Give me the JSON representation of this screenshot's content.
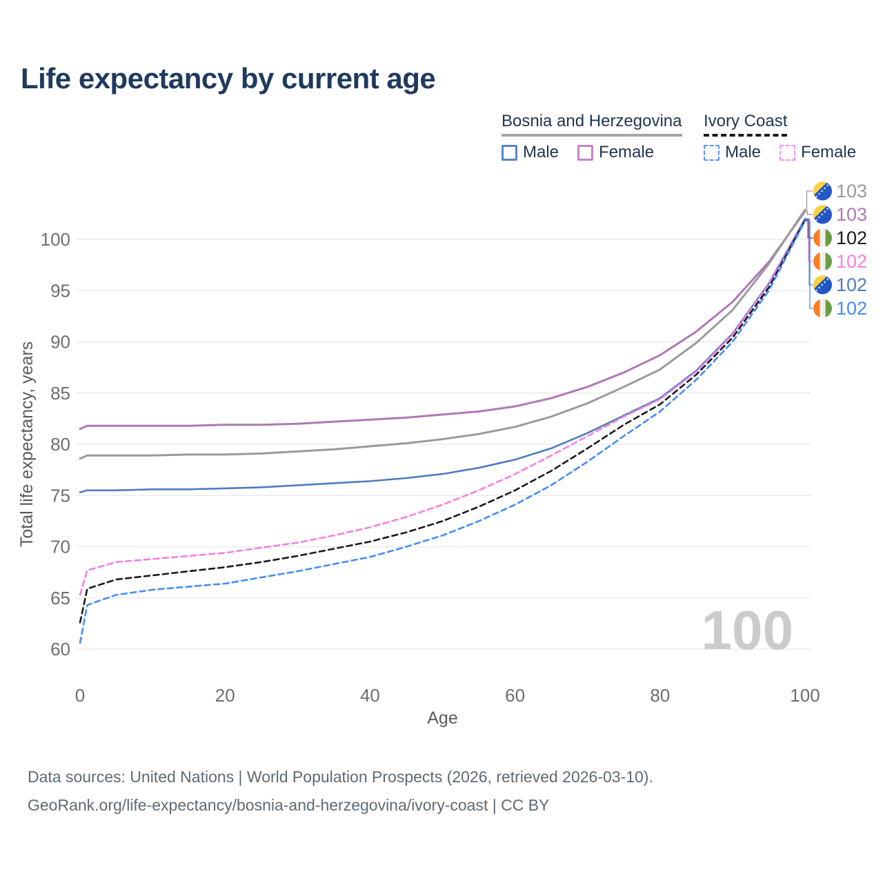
{
  "title": "Life expectancy by current age",
  "legend": {
    "groups": [
      {
        "label": "Bosnia and Herzegovina",
        "line_style": "solid",
        "underline_color": "#a6a6a6",
        "items": [
          {
            "label": "Male",
            "color": "#5b84c4",
            "swatch_style": "solid"
          },
          {
            "label": "Female",
            "color": "#c285c4",
            "swatch_style": "solid"
          }
        ]
      },
      {
        "label": "Ivory Coast",
        "line_style": "dashed",
        "underline_color": "#1a1a1a",
        "items": [
          {
            "label": "Male",
            "color": "#5191f5",
            "swatch_style": "dashed"
          },
          {
            "label": "Female",
            "color": "#fe8ce2",
            "swatch_style": "dashed"
          }
        ]
      }
    ]
  },
  "chart_data": {
    "type": "line",
    "title": "Life expectancy by current age",
    "xlabel": "Age",
    "ylabel": "Total life expectancy, years",
    "xlim": [
      0,
      100
    ],
    "ylim": [
      58,
      104
    ],
    "x_ticks": [
      0,
      20,
      40,
      60,
      80,
      100
    ],
    "y_ticks": [
      60,
      65,
      70,
      75,
      80,
      85,
      90,
      95,
      100
    ],
    "grid": "horizontal-only",
    "legend_position": "top-right",
    "x": [
      0,
      1,
      5,
      10,
      15,
      20,
      25,
      30,
      35,
      40,
      45,
      50,
      55,
      60,
      65,
      70,
      75,
      80,
      85,
      90,
      95,
      100
    ],
    "series": [
      {
        "name": "Bosnia and Herzegovina — Female",
        "color": "#b077b6",
        "style": "solid",
        "width": 3,
        "values": [
          81.5,
          81.8,
          81.8,
          81.8,
          81.8,
          81.9,
          81.9,
          82.0,
          82.2,
          82.4,
          82.6,
          82.9,
          83.2,
          83.7,
          84.5,
          85.6,
          87.0,
          88.7,
          91.0,
          93.9,
          97.8,
          102.75
        ]
      },
      {
        "name": "Bosnia and Herzegovina — Total",
        "color": "#9a9a9a",
        "style": "solid",
        "width": 3,
        "values": [
          78.6,
          78.9,
          78.9,
          78.9,
          79.0,
          79.0,
          79.1,
          79.3,
          79.5,
          79.8,
          80.1,
          80.5,
          81.0,
          81.7,
          82.7,
          84.0,
          85.6,
          87.3,
          89.9,
          93.1,
          97.6,
          102.9
        ]
      },
      {
        "name": "Bosnia and Herzegovina — Male",
        "color": "#4d7cbe",
        "style": "solid",
        "width": 2.6,
        "values": [
          75.3,
          75.5,
          75.5,
          75.6,
          75.6,
          75.7,
          75.8,
          76.0,
          76.2,
          76.4,
          76.7,
          77.1,
          77.7,
          78.5,
          79.6,
          81.1,
          82.8,
          84.5,
          87.2,
          90.8,
          95.7,
          102.0
        ]
      },
      {
        "name": "Ivory Coast — Female",
        "color": "#fb7ce0",
        "style": "dashed",
        "width": 2.6,
        "values": [
          65.3,
          67.7,
          68.5,
          68.8,
          69.1,
          69.4,
          69.9,
          70.4,
          71.1,
          71.9,
          72.9,
          74.1,
          75.5,
          77.1,
          78.9,
          80.8,
          82.7,
          84.4,
          87.1,
          90.7,
          95.6,
          101.95
        ]
      },
      {
        "name": "Ivory Coast — Total",
        "color": "#1a1a1a",
        "style": "dashed",
        "width": 2.6,
        "values": [
          62.6,
          65.9,
          66.8,
          67.2,
          67.6,
          68.0,
          68.5,
          69.1,
          69.8,
          70.5,
          71.4,
          72.5,
          73.9,
          75.5,
          77.4,
          79.6,
          81.9,
          83.9,
          86.8,
          90.4,
          95.3,
          101.9
        ]
      },
      {
        "name": "Ivory Coast — Male",
        "color": "#458bfa",
        "style": "dashed",
        "width": 2.6,
        "values": [
          60.6,
          64.3,
          65.3,
          65.8,
          66.1,
          66.4,
          67.0,
          67.6,
          68.3,
          69.0,
          70.0,
          71.1,
          72.5,
          74.1,
          76.0,
          78.3,
          80.8,
          83.2,
          86.3,
          90.0,
          95.0,
          101.8
        ]
      }
    ]
  },
  "right_labels": [
    {
      "value": "103",
      "color": "#9a9a9a",
      "flag": "bih",
      "series": 1
    },
    {
      "value": "103",
      "color": "#b077b6",
      "flag": "bih",
      "series": 0
    },
    {
      "value": "102",
      "color": "#1a1a1a",
      "flag": "civ",
      "series": 4
    },
    {
      "value": "102",
      "color": "#fb7ce0",
      "flag": "civ",
      "series": 3
    },
    {
      "value": "102",
      "color": "#4d7cbe",
      "flag": "bih",
      "series": 2
    },
    {
      "value": "102",
      "color": "#458bfa",
      "flag": "civ",
      "series": 5
    }
  ],
  "watermark": "100",
  "colors": {
    "title": "#1f3a5f",
    "axis_text": "#6e6e6e",
    "axis_title": "#5a5a5a",
    "gridline": "#e7e7e7",
    "watermark": "#cbcbcb",
    "footer": "#5d6a74"
  },
  "footer": {
    "line1": "Data sources: United Nations | World Population Prospects (2026, retrieved 2026-03-10).",
    "line2": "GeoRank.org/life-expectancy/bosnia-and-herzegovina/ivory-coast | CC BY"
  }
}
